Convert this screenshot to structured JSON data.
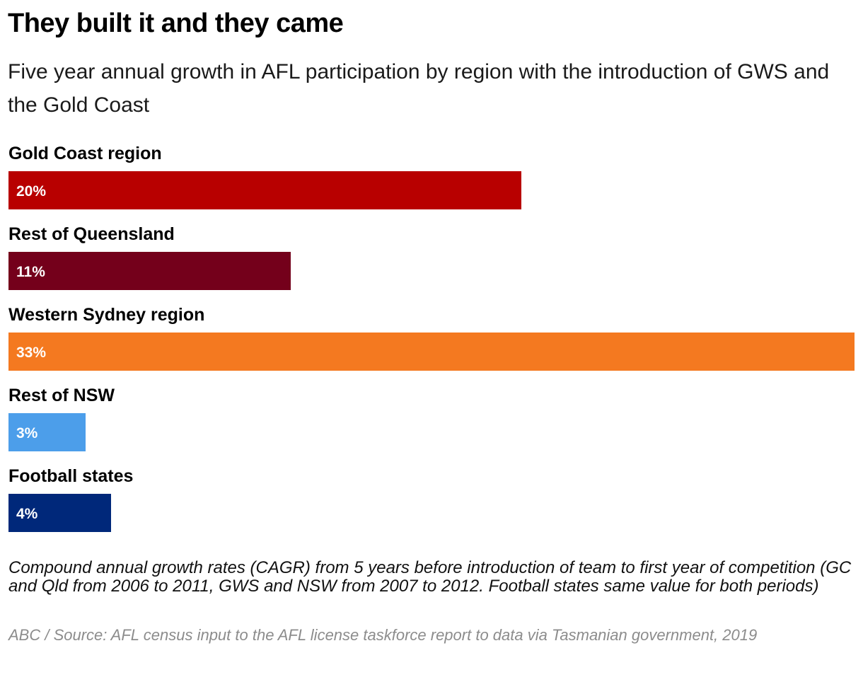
{
  "title": "They built it and they came",
  "subtitle": "Five year annual growth in AFL participation by region with the introduction of GWS and the Gold Coast",
  "notes": "Compound annual growth rates (CAGR) from 5 years before introduction of team to first year of competition (GC and Qld from 2006 to 2011, GWS and NSW from 2007 to 2012. Football states same value for both periods)",
  "source": "ABC / Source: AFL census input to the AFL license taskforce report to data via Tasmanian government, 2019",
  "chart_data": {
    "type": "bar",
    "orientation": "horizontal",
    "title": "They built it and they came",
    "subtitle": "Five year annual growth in AFL participation by region with the introduction of GWS and the Gold Coast",
    "categories": [
      "Gold Coast region",
      "Rest of Queensland",
      "Western Sydney region",
      "Rest of NSW",
      "Football states"
    ],
    "values": [
      20,
      11,
      33,
      3,
      4
    ],
    "value_labels": [
      "20%",
      "11%",
      "33%",
      "3%",
      "4%"
    ],
    "unit": "%",
    "xlim": [
      0,
      33
    ],
    "grid": false,
    "legend": "none",
    "colors": [
      "#b80000",
      "#74001b",
      "#f47920",
      "#4c9eea",
      "#00287a"
    ]
  }
}
